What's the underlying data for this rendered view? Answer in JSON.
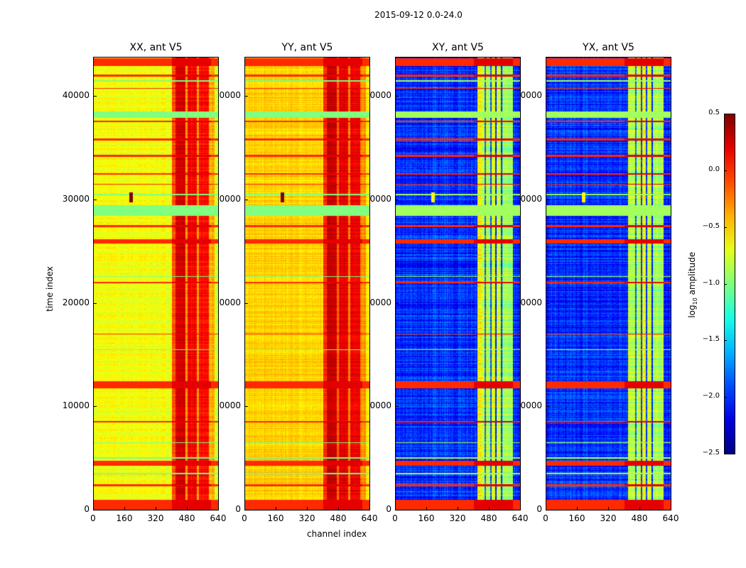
{
  "chart_data": {
    "type": "heatmap",
    "title": "2015-09-12 0.0-24.0",
    "xlabel": "channel index",
    "ylabel": "time index",
    "xlim": [
      0,
      640
    ],
    "ylim": [
      0,
      43800
    ],
    "xticks": [
      "0",
      "160",
      "320",
      "480",
      "640"
    ],
    "xtick_values": [
      0,
      160,
      320,
      480,
      640
    ],
    "yticks": [
      "0",
      "10000",
      "20000",
      "30000",
      "40000"
    ],
    "ytick_values": [
      0,
      10000,
      20000,
      30000,
      40000
    ],
    "colorbar": {
      "label": "log10 amplitude",
      "label_main": "log",
      "label_sub": "10",
      "label_rest": " amplitude",
      "range": [
        -2.5,
        0.5
      ],
      "ticks": [
        "0.5",
        "0.0",
        "−0.5",
        "−1.0",
        "−1.5",
        "−2.0",
        "−2.5"
      ],
      "tick_values": [
        0.5,
        0.0,
        -0.5,
        -1.0,
        -1.5,
        -2.0,
        -2.5
      ],
      "colormap": "jet"
    },
    "panels": [
      {
        "title": "XX, ant V5",
        "channel_levels": [
          [
            0,
            400,
            -0.65
          ],
          [
            400,
            420,
            -0.1
          ],
          [
            420,
            470,
            0.25
          ],
          [
            470,
            480,
            -0.3
          ],
          [
            480,
            530,
            0.15
          ],
          [
            530,
            540,
            -0.4
          ],
          [
            540,
            590,
            0.1
          ],
          [
            590,
            620,
            -0.4
          ],
          [
            620,
            640,
            -0.75
          ]
        ],
        "noise": 0.12
      },
      {
        "title": "YY, ant V5",
        "channel_levels": [
          [
            0,
            400,
            -0.5
          ],
          [
            400,
            420,
            0.0
          ],
          [
            420,
            470,
            0.3
          ],
          [
            470,
            480,
            -0.2
          ],
          [
            480,
            530,
            0.2
          ],
          [
            530,
            540,
            -0.3
          ],
          [
            540,
            590,
            0.15
          ],
          [
            590,
            620,
            -0.3
          ],
          [
            620,
            640,
            -0.6
          ]
        ],
        "noise": 0.12
      },
      {
        "title": "XY, ant V5",
        "channel_levels": [
          [
            0,
            420,
            -2.0
          ],
          [
            420,
            455,
            -0.7
          ],
          [
            455,
            462,
            -1.8
          ],
          [
            462,
            485,
            -0.8
          ],
          [
            485,
            492,
            -2.0
          ],
          [
            492,
            510,
            -0.7
          ],
          [
            510,
            518,
            -2.0
          ],
          [
            518,
            540,
            -0.8
          ],
          [
            540,
            548,
            -2.0
          ],
          [
            548,
            600,
            -0.9
          ],
          [
            600,
            640,
            -2.05
          ]
        ],
        "noise": 0.25
      },
      {
        "title": "YX, ant V5",
        "channel_levels": [
          [
            0,
            420,
            -2.0
          ],
          [
            420,
            455,
            -0.75
          ],
          [
            455,
            462,
            -1.8
          ],
          [
            462,
            485,
            -0.8
          ],
          [
            485,
            492,
            -2.0
          ],
          [
            492,
            510,
            -0.7
          ],
          [
            510,
            518,
            -2.0
          ],
          [
            518,
            540,
            -0.8
          ],
          [
            540,
            548,
            -2.0
          ],
          [
            548,
            600,
            -0.9
          ],
          [
            600,
            640,
            -2.05
          ]
        ],
        "noise": 0.25
      }
    ],
    "rfi_rows_high": [
      [
        0,
        1000
      ],
      [
        2300,
        2500
      ],
      [
        4300,
        4800
      ],
      [
        8500,
        8600
      ],
      [
        11800,
        12500
      ],
      [
        17000,
        17080
      ],
      [
        22000,
        22080
      ],
      [
        25800,
        26200
      ],
      [
        27400,
        27600
      ],
      [
        31500,
        31600
      ],
      [
        32500,
        32600
      ],
      [
        34200,
        34400
      ],
      [
        35800,
        36000
      ],
      [
        37600,
        37700
      ],
      [
        40800,
        40900
      ],
      [
        42000,
        42200
      ],
      [
        43000,
        43800
      ]
    ],
    "rfi_rows_mid": [
      [
        3500,
        3600
      ],
      [
        5000,
        5100
      ],
      [
        6500,
        6560
      ],
      [
        15500,
        15600
      ],
      [
        22600,
        22680
      ],
      [
        28500,
        29500
      ],
      [
        30500,
        30650
      ],
      [
        38000,
        38600
      ],
      [
        41500,
        41600
      ]
    ]
  }
}
